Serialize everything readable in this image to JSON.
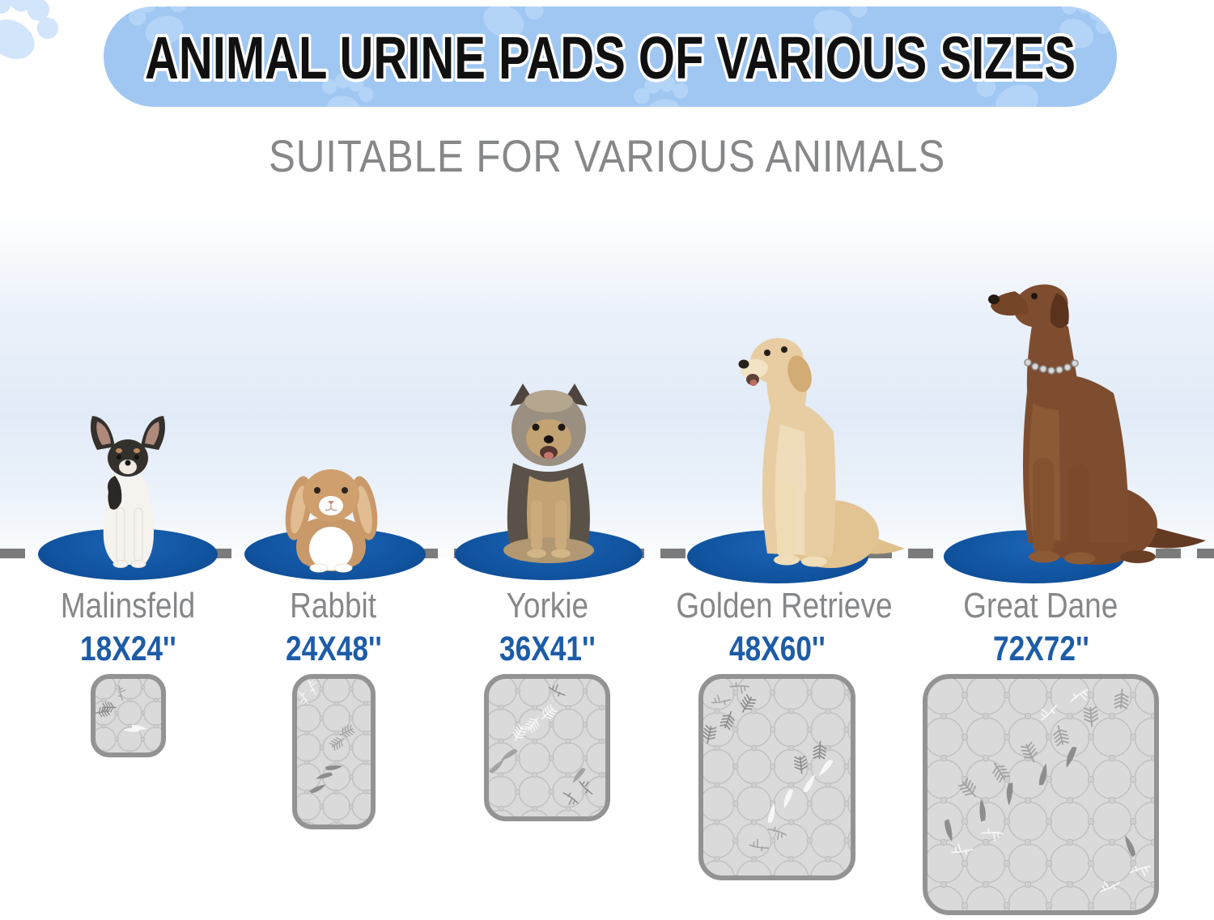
{
  "banner": {
    "title": "ANIMAL URINE PADS OF VARIOUS SIZES"
  },
  "subtitle": "SUITABLE FOR VARIOUS ANIMALS",
  "animals": [
    {
      "name": "Malinsfeld",
      "pad_size": "18X24''"
    },
    {
      "name": "Rabbit",
      "pad_size": "24X48''"
    },
    {
      "name": "Yorkie",
      "pad_size": "36X41''"
    },
    {
      "name": "Golden Retrieve",
      "pad_size": "48X60''"
    },
    {
      "name": "Great Dane",
      "pad_size": "72X72''"
    }
  ],
  "colors": {
    "banner_bg": "#9fc7f2",
    "banner_paw": "#b7d6f8",
    "size_label_blue": "#1d5ca7",
    "name_label_gray": "#868789",
    "mat_oval_blue": "#11549f",
    "dashed_line_gray": "#7b7b7b",
    "pad_fill_gray": "#d6d6d6",
    "pad_border_gray": "#939393"
  }
}
